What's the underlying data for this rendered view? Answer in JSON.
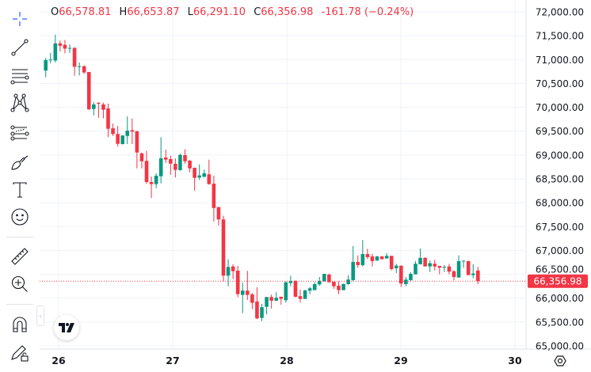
{
  "legend": {
    "o_label": "O",
    "o": "66,578.81",
    "h_label": "H",
    "h": "66,653.87",
    "l_label": "L",
    "l": "66,291.10",
    "c_label": "C",
    "c": "66,356.98",
    "change": "-161.78 (−0.24%)"
  },
  "toolbar": {
    "tools": [
      "crosshair-icon",
      "trend-line-icon",
      "fib-retracement-icon",
      "pattern-icon",
      "projection-icon",
      "brush-icon",
      "text-icon",
      "emoji-icon",
      "ruler-icon",
      "zoom-in-icon",
      "magnet-icon",
      "lock-drawings-icon"
    ]
  },
  "settings_icon": "gear-hexagon-icon",
  "colors": {
    "up": "#089981",
    "down": "#f23645",
    "grid": "#f0f3fa",
    "text": "#131722"
  },
  "chart_data": {
    "type": "candlestick",
    "interval": "1 hour",
    "last_price_label": "66,356.98",
    "ylim": [
      65000,
      72000
    ],
    "y_ticks": [
      72000,
      71500,
      71000,
      70500,
      70000,
      69500,
      69000,
      68500,
      68000,
      67500,
      67000,
      66500,
      66000,
      65500,
      65000
    ],
    "y_tick_labels": [
      "72,000.00",
      "71,500.00",
      "71,000.00",
      "70,500.00",
      "70,000.00",
      "69,500.00",
      "69,000.00",
      "68,500.00",
      "68,000.00",
      "67,500.00",
      "67,000.00",
      "66,500.00",
      "66,000.00",
      "65,500.00",
      "65,000.00"
    ],
    "x_tick_labels": [
      "26",
      "27",
      "28",
      "29",
      "30"
    ],
    "grid": true,
    "ohlc": [
      [
        70770,
        71035,
        70630,
        70990
      ],
      [
        70990,
        71140,
        70920,
        71000
      ],
      [
        70980,
        71520,
        70940,
        71340
      ],
      [
        71340,
        71400,
        71170,
        71290
      ],
      [
        71310,
        71410,
        71130,
        71230
      ],
      [
        71240,
        71320,
        71140,
        71245
      ],
      [
        71245,
        71260,
        70660,
        70850
      ],
      [
        70855,
        70940,
        70670,
        70860
      ],
      [
        70860,
        70880,
        70700,
        70730
      ],
      [
        70740,
        70740,
        69940,
        69960
      ],
      [
        69965,
        70110,
        69830,
        70060
      ],
      [
        70093,
        70110,
        69780,
        70076
      ],
      [
        70060,
        70095,
        69770,
        69950
      ],
      [
        69975,
        70076,
        69375,
        69550
      ],
      [
        69560,
        69660,
        69400,
        69440
      ],
      [
        69440,
        69610,
        69180,
        69235
      ],
      [
        69230,
        69410,
        69220,
        69410
      ],
      [
        69400,
        69810,
        69230,
        69510
      ],
      [
        69520,
        69765,
        69230,
        69490
      ],
      [
        69500,
        69500,
        68720,
        69053
      ],
      [
        69035,
        69050,
        68720,
        68870
      ],
      [
        68877,
        69090,
        68395,
        68434
      ],
      [
        68434,
        68550,
        68100,
        68390
      ],
      [
        68390,
        68617,
        68305,
        68567
      ],
      [
        68555,
        69375,
        68406,
        68932
      ],
      [
        68948,
        69115,
        68832,
        68904
      ],
      [
        68915,
        68987,
        68584,
        68820
      ],
      [
        68815,
        68927,
        68530,
        68688
      ],
      [
        68683,
        69026,
        68671,
        69004
      ],
      [
        68998,
        69120,
        68820,
        68870
      ],
      [
        68882,
        68894,
        68638,
        68720
      ],
      [
        68733,
        68733,
        68252,
        68522
      ],
      [
        68528,
        68804,
        68479,
        68572
      ],
      [
        68545,
        68695,
        68528,
        68617
      ],
      [
        68595,
        68903,
        68380,
        68390
      ],
      [
        68400,
        68567,
        67605,
        67890
      ],
      [
        67910,
        67910,
        67522,
        67650
      ],
      [
        67650,
        67727,
        66349,
        66473
      ],
      [
        66472,
        66815,
        66249,
        66654
      ],
      [
        66665,
        66710,
        66400,
        66565
      ],
      [
        66577,
        66676,
        66020,
        66085
      ],
      [
        66069,
        66323,
        65686,
        66158
      ],
      [
        66158,
        66572,
        65963,
        66069
      ],
      [
        66080,
        66113,
        65770,
        65903
      ],
      [
        65930,
        66229,
        65560,
        65576
      ],
      [
        65586,
        65880,
        65520,
        65810
      ],
      [
        65818,
        66024,
        65660,
        66024
      ],
      [
        66024,
        66074,
        65781,
        65947
      ],
      [
        65947,
        66124,
        65947,
        66008
      ],
      [
        66030,
        66030,
        65864,
        65985
      ],
      [
        65957,
        66350,
        65908,
        66333
      ],
      [
        66317,
        66472,
        66250,
        66357
      ],
      [
        66361,
        66373,
        66019,
        66030
      ],
      [
        66041,
        66179,
        65908,
        65985
      ],
      [
        65985,
        66179,
        65985,
        66162
      ],
      [
        66157,
        66234,
        66085,
        66207
      ],
      [
        66168,
        66334,
        66168,
        66295
      ],
      [
        66288,
        66444,
        66262,
        66361
      ],
      [
        66350,
        66510,
        66350,
        66510
      ],
      [
        66494,
        66516,
        66333,
        66333
      ],
      [
        66345,
        66345,
        66195,
        66250
      ],
      [
        66262,
        66356,
        66085,
        66168
      ],
      [
        66168,
        66306,
        66168,
        66295
      ],
      [
        66295,
        66483,
        66278,
        66390
      ],
      [
        66378,
        67091,
        66361,
        66760
      ],
      [
        66760,
        66898,
        66638,
        66693
      ],
      [
        66693,
        67218,
        66665,
        66925
      ],
      [
        66925,
        67036,
        66820,
        66859
      ],
      [
        66875,
        66931,
        66665,
        66776
      ],
      [
        66787,
        66887,
        66787,
        66875
      ],
      [
        66875,
        66887,
        66815,
        66815
      ],
      [
        66831,
        66942,
        66831,
        66887
      ],
      [
        66887,
        66887,
        66582,
        66610
      ],
      [
        66627,
        66721,
        66527,
        66682
      ],
      [
        66682,
        66682,
        66234,
        66306
      ],
      [
        66295,
        66444,
        66250,
        66389
      ],
      [
        66378,
        66544,
        66350,
        66510
      ],
      [
        66499,
        66776,
        66499,
        66721
      ],
      [
        66710,
        67041,
        66710,
        66843
      ],
      [
        66843,
        66859,
        66665,
        66665
      ],
      [
        66665,
        66787,
        66549,
        66732
      ],
      [
        66721,
        66803,
        66582,
        66665
      ],
      [
        66676,
        66676,
        66499,
        66638
      ],
      [
        66648,
        66693,
        66549,
        66655
      ],
      [
        66665,
        66721,
        66499,
        66555
      ],
      [
        66565,
        66582,
        66373,
        66444
      ],
      [
        66433,
        66898,
        66433,
        66776
      ],
      [
        66776,
        66787,
        66638,
        66785
      ],
      [
        66776,
        66787,
        66483,
        66483
      ],
      [
        66483,
        66710,
        66416,
        66516
      ],
      [
        66578.81,
        66653.87,
        66291.1,
        66356.98
      ]
    ]
  }
}
